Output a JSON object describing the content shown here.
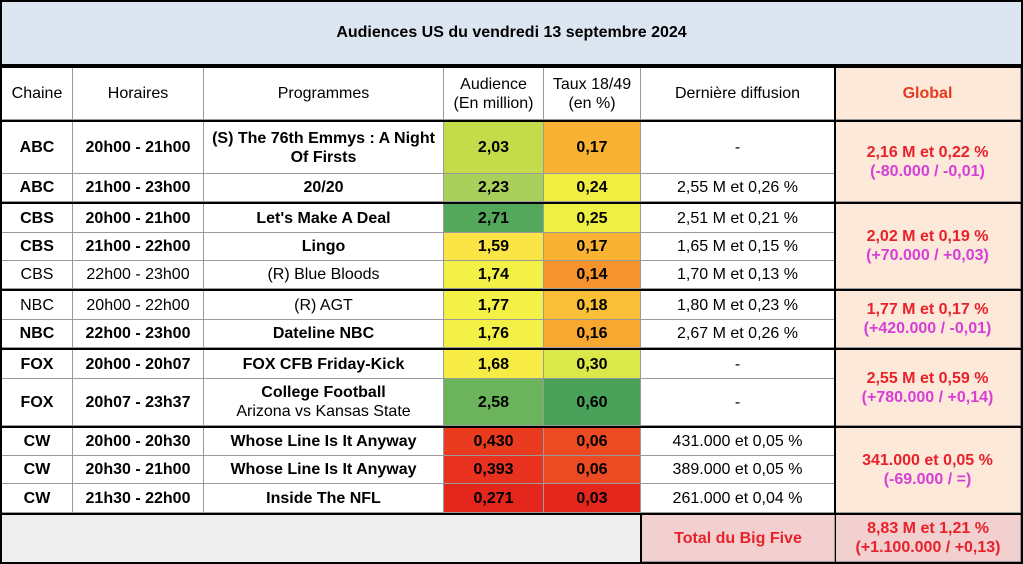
{
  "title": "Audiences US du vendredi 13 septembre 2024",
  "headers": {
    "chaine": "Chaine",
    "horaires": "Horaires",
    "programmes": "Programmes",
    "audience_l1": "Audience",
    "audience_l2": "(En million)",
    "taux_l1": "Taux 18/49",
    "taux_l2": "(en %)",
    "derniere": "Dernière diffusion",
    "global": "Global"
  },
  "rows": [
    {
      "chaine": "ABC",
      "horaires": "20h00 - 21h00",
      "programme": "(S) The 76th Emmys : A Night Of Firsts",
      "sub": "",
      "audience": "2,03",
      "taux": "0,17",
      "derniere": "-",
      "bold": true,
      "aud_color": "#c5dc4a",
      "taux_color": "#f9b233"
    },
    {
      "chaine": "ABC",
      "horaires": "21h00 - 23h00",
      "programme": "20/20",
      "sub": "",
      "audience": "2,23",
      "taux": "0,24",
      "derniere": "2,55 M et 0,26 %",
      "bold": true,
      "aud_color": "#a8d05a",
      "taux_color": "#f1ee41"
    },
    {
      "chaine": "CBS",
      "horaires": "20h00 - 21h00",
      "programme": "Let's Make A Deal",
      "sub": "",
      "audience": "2,71",
      "taux": "0,25",
      "derniere": "2,51 M et 0,21 %",
      "bold": true,
      "aud_color": "#54a85c",
      "taux_color": "#eef043"
    },
    {
      "chaine": "CBS",
      "horaires": "21h00 - 22h00",
      "programme": "Lingo",
      "sub": "",
      "audience": "1,59",
      "taux": "0,17",
      "derniere": "1,65 M et 0,15 %",
      "bold": true,
      "aud_color": "#fbe446",
      "taux_color": "#f9b233"
    },
    {
      "chaine": "CBS",
      "horaires": "22h00 - 23h00",
      "programme": "(R) Blue Bloods",
      "sub": "",
      "audience": "1,74",
      "taux": "0,14",
      "derniere": "1,70 M et 0,13 %",
      "bold": false,
      "aud_color": "#f3f046",
      "taux_color": "#f7932c"
    },
    {
      "chaine": "NBC",
      "horaires": "20h00 - 22h00",
      "programme": "(R) AGT",
      "sub": "",
      "audience": "1,77",
      "taux": "0,18",
      "derniere": "1,80 M et 0,23 %",
      "bold": false,
      "aud_color": "#f3f046",
      "taux_color": "#f9bf37"
    },
    {
      "chaine": "NBC",
      "horaires": "22h00 - 23h00",
      "programme": "Dateline NBC",
      "sub": "",
      "audience": "1,76",
      "taux": "0,16",
      "derniere": "2,67 M et 0,26 %",
      "bold": true,
      "aud_color": "#f3f046",
      "taux_color": "#f8a830"
    },
    {
      "chaine": "FOX",
      "horaires": "20h00 - 20h07",
      "programme": "FOX CFB Friday-Kick",
      "sub": "",
      "audience": "1,68",
      "taux": "0,30",
      "derniere": "-",
      "bold": true,
      "aud_color": "#f7ec46",
      "taux_color": "#dbe84a"
    },
    {
      "chaine": "FOX",
      "horaires": "20h07 - 23h37",
      "programme": "College Football",
      "sub": "Arizona vs Kansas State",
      "audience": "2,58",
      "taux": "0,60",
      "derniere": "-",
      "bold": true,
      "aud_color": "#6cb45c",
      "taux_color": "#4aa25a"
    },
    {
      "chaine": "CW",
      "horaires": "20h00 - 20h30",
      "programme": "Whose Line Is It Anyway",
      "sub": "",
      "audience": "0,430",
      "taux": "0,06",
      "derniere": "431.000 et 0,05 %",
      "bold": true,
      "aud_color": "#ea3b20",
      "taux_color": "#ec4a22"
    },
    {
      "chaine": "CW",
      "horaires": "20h30 - 21h00",
      "programme": "Whose Line Is It Anyway",
      "sub": "",
      "audience": "0,393",
      "taux": "0,06",
      "derniere": "389.000 et 0,05 %",
      "bold": true,
      "aud_color": "#e8311e",
      "taux_color": "#ec4a22"
    },
    {
      "chaine": "CW",
      "horaires": "21h30 - 22h00",
      "programme": "Inside The NFL",
      "sub": "",
      "audience": "0,271",
      "taux": "0,03",
      "derniere": "261.000 et 0,04 %",
      "bold": true,
      "aud_color": "#e5261c",
      "taux_color": "#e5261c"
    }
  ],
  "global": [
    {
      "l1": "2,16 M et 0,22 %",
      "l2": "(-80.000 / -0,01)",
      "l2_color": "#d63fd6"
    },
    {
      "l1": "2,02 M et 0,19 %",
      "l2": "(+70.000 / +0,03)",
      "l2_color": "#d63fd6"
    },
    {
      "l1": "1,77 M et 0,17 %",
      "l2": "(+420.000 / -0,01)",
      "l2_color": "#d63fd6"
    },
    {
      "l1": "2,55 M et 0,59 %",
      "l2": "(+780.000 / +0,14)",
      "l2_color": "#d63fd6"
    },
    {
      "l1": "341.000 et 0,05 %",
      "l2": "(-69.000  / =)",
      "l2_color": "#d63fd6"
    }
  ],
  "total": {
    "label": "Total du Big Five",
    "l1": "8,83 M et 1,21 %",
    "l2": "(+1.100.000 / +0,13)"
  }
}
